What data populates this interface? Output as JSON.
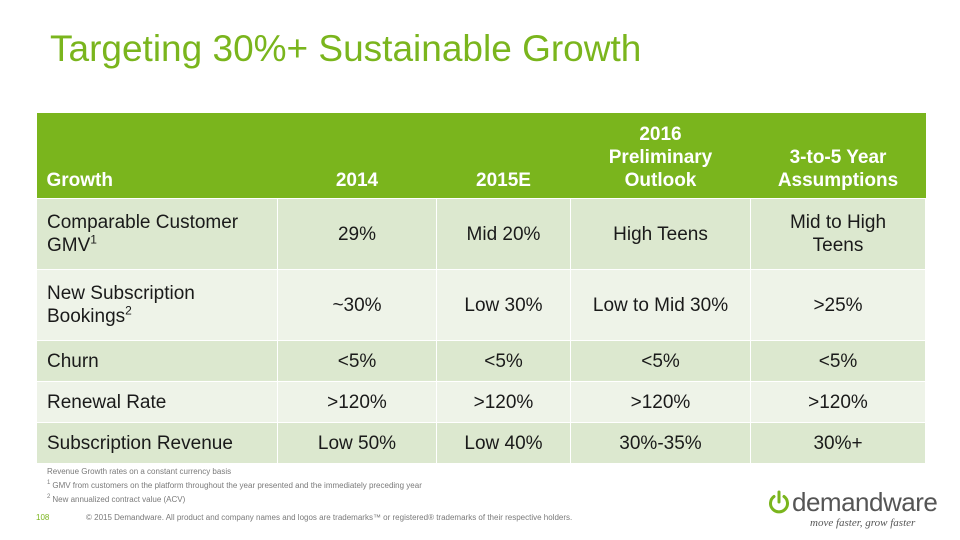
{
  "title": "Targeting 30%+ Sustainable Growth",
  "table": {
    "headers": [
      {
        "lines": [
          "Growth"
        ]
      },
      {
        "lines": [
          "2014"
        ]
      },
      {
        "lines": [
          "2015E"
        ]
      },
      {
        "lines": [
          "2016",
          "Preliminary",
          "Outlook"
        ]
      },
      {
        "lines": [
          "3-to-5 Year",
          "Assumptions"
        ]
      }
    ],
    "rows": [
      {
        "label_lines": [
          "Comparable Customer",
          "GMV"
        ],
        "label_sup": "1",
        "values": [
          "29%",
          "Mid 20%",
          "High Teens",
          "Mid to High\nTeens"
        ]
      },
      {
        "label_lines": [
          "New Subscription",
          "Bookings"
        ],
        "label_sup": "2",
        "values": [
          "~30%",
          "Low 30%",
          "Low to Mid 30%",
          ">25%"
        ]
      },
      {
        "label_lines": [
          "Churn"
        ],
        "label_sup": "",
        "values": [
          "<5%",
          "<5%",
          "<5%",
          "<5%"
        ]
      },
      {
        "label_lines": [
          "Renewal Rate"
        ],
        "label_sup": "",
        "values": [
          ">120%",
          ">120%",
          ">120%",
          ">120%"
        ]
      },
      {
        "label_lines": [
          "Subscription Revenue"
        ],
        "label_sup": "",
        "values": [
          "Low 50%",
          "Low 40%",
          "30%-35%",
          "30%+"
        ]
      }
    ]
  },
  "notes": {
    "line0": "Revenue Growth rates on a constant currency basis",
    "fn1_num": "1",
    "fn1_text": "GMV from customers on the platform throughout the year presented and the immediately preceding year",
    "fn2_num": "2",
    "fn2_text": "New annualized contract value (ACV)"
  },
  "footer": {
    "page_number": "108",
    "copyright": "© 2015 Demandware. All product and company names and logos are trademarks™ or registered® trademarks of their respective holders."
  },
  "logo": {
    "wordmark": "demandware",
    "tagline": "move faster, grow faster",
    "color": "#555555",
    "icon": "power-icon"
  },
  "colors": {
    "accent": "#7ab51d",
    "row_odd": "#dce8cf",
    "row_even": "#eef3e8"
  }
}
